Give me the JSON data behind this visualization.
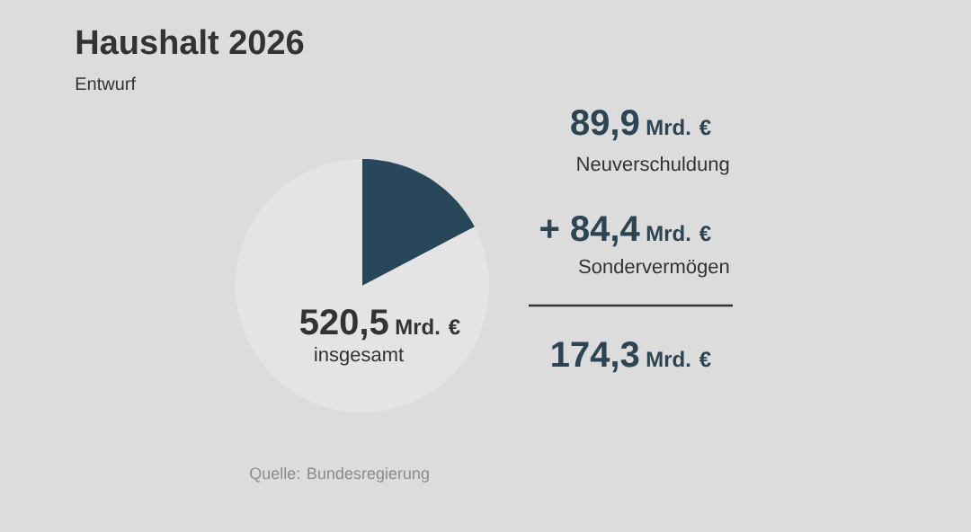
{
  "chart_data": {
    "type": "pie",
    "title": "Haushalt 2026",
    "subtitle": "Entwurf",
    "categories": [
      null,
      null
    ],
    "values": [
      17.3,
      82.7
    ],
    "colors": [
      "#29475a",
      "#e4e4e4"
    ],
    "annotations": [
      "89,9",
      "Mrd. €",
      "Neuverschuldung",
      "+ 84,4",
      "Mrd. €",
      "Sondervermögen",
      "174,3",
      "Mrd. €",
      "520,5",
      "Mrd. €",
      "insgesamt",
      "Quelle: Bundesregierung"
    ]
  }
}
